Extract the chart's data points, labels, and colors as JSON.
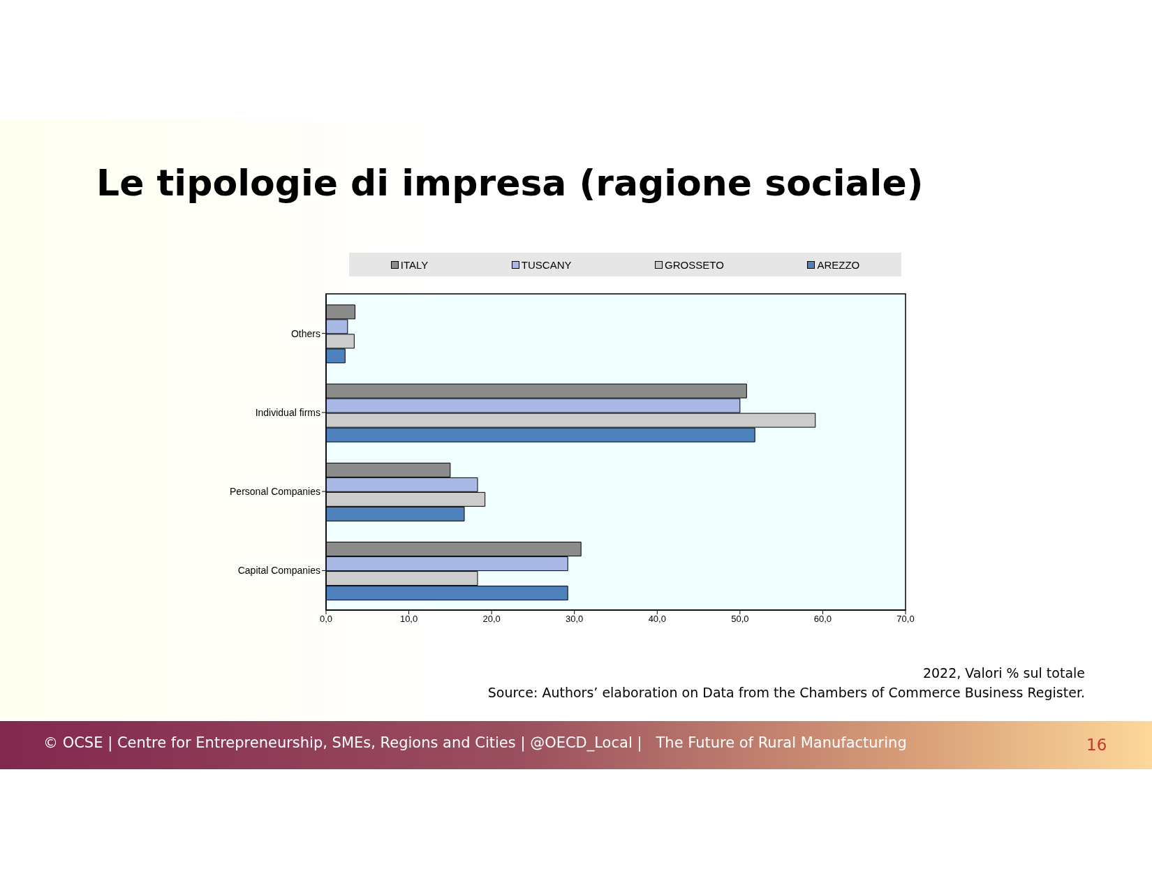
{
  "chart_data": {
    "type": "bar",
    "orientation": "horizontal",
    "title": "Le tipologie di impresa (ragione sociale)",
    "categories": [
      "Others",
      "Individual firms",
      "Personal Companies",
      "Capital Companies"
    ],
    "series": [
      {
        "name": "ITALY",
        "color": "#8c8c8c",
        "values": [
          3.5,
          50.8,
          15.0,
          30.8
        ]
      },
      {
        "name": "TUSCANY",
        "color": "#a9b8e4",
        "values": [
          2.6,
          50.0,
          18.3,
          29.2
        ]
      },
      {
        "name": "GROSSETO",
        "color": "#cccccc",
        "values": [
          3.4,
          59.1,
          19.2,
          18.3
        ]
      },
      {
        "name": "AREZZO",
        "color": "#4f81bd",
        "values": [
          2.3,
          51.8,
          16.7,
          29.2
        ]
      }
    ],
    "xlim": [
      0,
      70
    ],
    "xticks": [
      {
        "value": 0,
        "label": "0,0"
      },
      {
        "value": 10,
        "label": "10,0"
      },
      {
        "value": 20,
        "label": "20,0"
      },
      {
        "value": 30,
        "label": "30,0"
      },
      {
        "value": 40,
        "label": "40,0"
      },
      {
        "value": 50,
        "label": "50,0"
      },
      {
        "value": 60,
        "label": "60,0"
      },
      {
        "value": 70,
        "label": "70,0"
      }
    ],
    "grid": false,
    "legend": "top",
    "annotations": [
      "2022, Valori % sul totale",
      "Source: Authors’ elaboration on Data from the Chambers of Commerce Business Register.",
      "© OCSE | Centre for Entrepreneurship, SMEs, Regions and Cities | @OECD_Local |   The Future of Rural Manufacturing",
      "16"
    ]
  }
}
